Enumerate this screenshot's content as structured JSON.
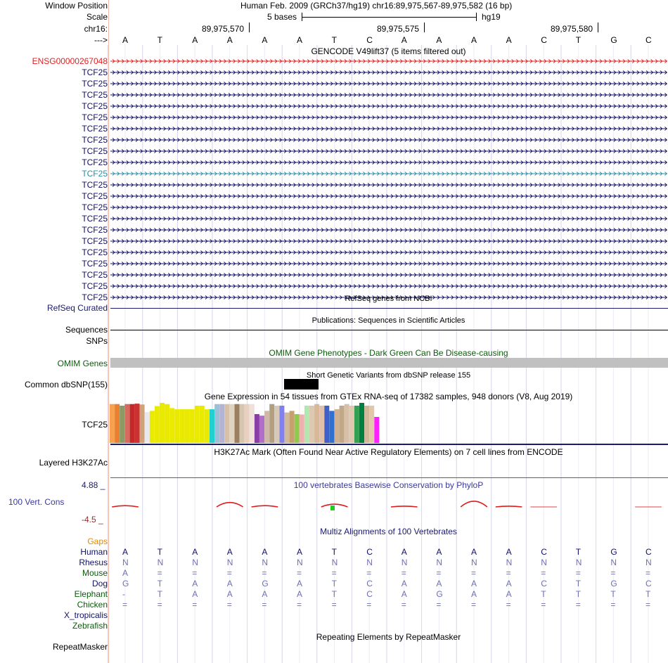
{
  "header": {
    "window_position_label": "Window Position",
    "window_position_value": "Human Feb. 2009 (GRCh37/hg19)   chr16:89,975,567-89,975,582 (16 bp)",
    "scale_label": "Scale",
    "scale_value": "5 bases",
    "scale_assembly": "hg19",
    "chrom_label": "chr16:",
    "coord_ticks": [
      "89,975,570",
      "89,975,575",
      "89,975,580"
    ],
    "strand_label": "--->"
  },
  "sequence": [
    "A",
    "T",
    "A",
    "A",
    "A",
    "A",
    "T",
    "C",
    "A",
    "A",
    "A",
    "A",
    "C",
    "T",
    "G",
    "C"
  ],
  "gencode": {
    "title": "GENCODE V49lift37 (5 items filtered out)",
    "items": [
      "ENSG00000267048",
      "TCF25",
      "TCF25",
      "TCF25",
      "TCF25",
      "TCF25",
      "TCF25",
      "TCF25",
      "TCF25",
      "TCF25",
      "TCF25",
      "TCF25",
      "TCF25",
      "TCF25",
      "TCF25",
      "TCF25",
      "TCF25",
      "TCF25",
      "TCF25",
      "TCF25",
      "TCF25",
      "TCF25"
    ],
    "colors": {
      "ensg": "#e22020",
      "default": "#111166",
      "highlight": "#2a8fa8"
    }
  },
  "refseq": {
    "title": "RefSeq genes from NCBI",
    "label": "RefSeq Curated"
  },
  "publications": {
    "title": "Publications: Sequences in Scientific Articles",
    "label": "Sequences"
  },
  "snps": {
    "label": "SNPs"
  },
  "omim": {
    "title": "OMIM Gene Phenotypes - Dark Green Can Be Disease-causing",
    "label": "OMIM Genes"
  },
  "dbsnp": {
    "title": "Short Genetic Variants from dbSNP release 155",
    "label": "Common dbSNP(155)"
  },
  "gtex": {
    "title": "Gene Expression in 54 tissues from GTEx RNA-seq of 17382 samples, 948 donors (V8, Aug 2019)",
    "label": "TCF25",
    "values": [
      0.97,
      0.97,
      0.93,
      0.97,
      0.97,
      0.98,
      0.96,
      0.77,
      0.8,
      0.92,
      1.0,
      0.97,
      0.87,
      0.84,
      0.84,
      0.84,
      0.84,
      0.93,
      0.93,
      0.84,
      0.84,
      0.97,
      0.97,
      0.97,
      0.97,
      0.97,
      0.97,
      0.97,
      0.97,
      0.72,
      0.68,
      0.8,
      0.97,
      0.93,
      0.93,
      0.76,
      0.8,
      0.72,
      0.71,
      0.93,
      0.93,
      0.97,
      0.93,
      0.93,
      0.8,
      0.84,
      0.93,
      0.97,
      0.93,
      0.93,
      1.0,
      0.93,
      0.93,
      0.65
    ],
    "colors": [
      "#f7a050",
      "#e87f31",
      "#8b9a64",
      "#d66a5e",
      "#c42828",
      "#cc3030",
      "#cfa27a",
      "#e8e8f0",
      "#eaea00",
      "#eaea00",
      "#eaea00",
      "#eaea00",
      "#eaea00",
      "#eaea00",
      "#eaea00",
      "#eaea00",
      "#eaea00",
      "#eaea00",
      "#eaea00",
      "#eaea00",
      "#22d0d0",
      "#9cc0d8",
      "#b3b3d4",
      "#d8c0a8",
      "#e0d4c0",
      "#9a8060",
      "#d6c6b0",
      "#e8d0c0",
      "#f0e0d8",
      "#8a3ca8",
      "#b070c8",
      "#d0b8a8",
      "#b0a080",
      "#d8c8b8",
      "#8080f0",
      "#d0b898",
      "#c8a070",
      "#90c850",
      "#f0b0b0",
      "#b0e8b0",
      "#ddc8b0",
      "#d8b898",
      "#e0c0a8",
      "#4060c8",
      "#3070d0",
      "#d0b090",
      "#c0a888",
      "#d8c0a8",
      "#e0c8b0",
      "#32a050",
      "#008040",
      "#d0b898",
      "#e0c8a8",
      "#ff20ff"
    ]
  },
  "h3k27ac": {
    "title": "H3K27Ac Mark (Often Found Near Active Regulatory Elements) on 7 cell lines from ENCODE",
    "label": "Layered H3K27Ac"
  },
  "conservation": {
    "title": "100 vertebrates Basewise Conservation by PhyloP",
    "label": "100 Vert. Cons",
    "max_label": "4.88 _",
    "min_label": "-4.5 _",
    "scores": [
      0.1,
      0,
      0,
      0.35,
      0.1,
      0,
      0.22,
      0,
      0.06,
      0,
      0.45,
      0.06,
      0.02,
      0,
      0,
      0.03
    ]
  },
  "multiz": {
    "title": "Multiz Alignments of 100 Vertebrates",
    "gaps_label": "Gaps",
    "species": [
      {
        "name": "Human",
        "color": "#111166",
        "bases": [
          "A",
          "T",
          "A",
          "A",
          "A",
          "A",
          "T",
          "C",
          "A",
          "A",
          "A",
          "A",
          "C",
          "T",
          "G",
          "C"
        ]
      },
      {
        "name": "Rhesus",
        "color": "#111166",
        "bases": [
          "N",
          "N",
          "N",
          "N",
          "N",
          "N",
          "N",
          "N",
          "N",
          "N",
          "N",
          "N",
          "N",
          "N",
          "N",
          "N"
        ]
      },
      {
        "name": "Mouse",
        "color": "#0c5a0c",
        "bases": [
          "A",
          "=",
          "=",
          "=",
          "=",
          "=",
          "=",
          "=",
          "=",
          "=",
          "=",
          "=",
          "=",
          "=",
          "=",
          "="
        ]
      },
      {
        "name": "Dog",
        "color": "#111166",
        "bases": [
          "G",
          "T",
          "A",
          "A",
          "G",
          "A",
          "T",
          "C",
          "A",
          "A",
          "A",
          "A",
          "C",
          "T",
          "G",
          "C"
        ]
      },
      {
        "name": "Elephant",
        "color": "#0c5a0c",
        "bases": [
          "-",
          "T",
          "A",
          "A",
          "A",
          "A",
          "T",
          "C",
          "A",
          "G",
          "A",
          "A",
          "T",
          "T",
          "T",
          "T"
        ]
      },
      {
        "name": "Chicken",
        "color": "#0c5a0c",
        "bases": [
          "=",
          "=",
          "=",
          "=",
          "=",
          "=",
          "=",
          "=",
          "=",
          "=",
          "=",
          "=",
          "=",
          "=",
          "=",
          "="
        ]
      },
      {
        "name": "X_tropicalis",
        "color": "#111166",
        "bases": []
      },
      {
        "name": "Zebrafish",
        "color": "#0c5a0c",
        "bases": []
      }
    ]
  },
  "repeatmasker": {
    "title": "Repeating Elements by RepeatMasker",
    "label": "RepeatMasker"
  }
}
